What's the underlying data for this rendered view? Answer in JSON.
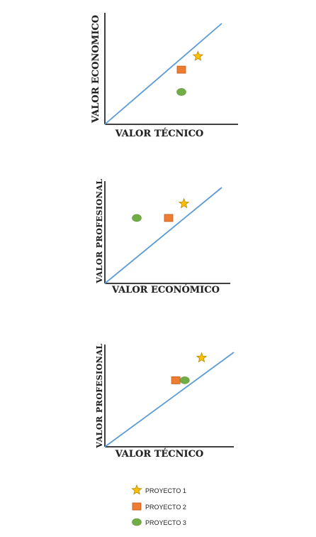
{
  "colors": {
    "axis": "#000000",
    "diagonal": "#5b9bd5",
    "proyecto1": "#ffc000",
    "proyecto1_stroke": "#b48a00",
    "proyecto2": "#ed7d31",
    "proyecto2_stroke": "#c05a1a",
    "proyecto3": "#70ad47",
    "proyecto3_stroke": "#5a9338"
  },
  "charts": [
    {
      "id": "tecnico-vs-economico",
      "x_label": "VALOR TÉCNICO",
      "y_label": "VALOR ECONOMICO",
      "markers": [
        {
          "project": "PROYECTO 1",
          "shape": "star-icon",
          "x": 0.73,
          "y": 0.61
        },
        {
          "project": "PROYECTO 2",
          "shape": "square-icon",
          "x": 0.6,
          "y": 0.49
        },
        {
          "project": "PROYECTO 3",
          "shape": "ellipse-icon",
          "x": 0.6,
          "y": 0.29
        }
      ]
    },
    {
      "id": "economico-vs-profesional",
      "x_label": "VALOR ECONÓMICO",
      "y_label": "VALOR PROFESIONAL",
      "markers": [
        {
          "project": "PROYECTO 1",
          "shape": "star-icon",
          "x": 0.62,
          "y": 0.78
        },
        {
          "project": "PROYECTO 2",
          "shape": "square-icon",
          "x": 0.5,
          "y": 0.64
        },
        {
          "project": "PROYECTO 3",
          "shape": "ellipse-icon",
          "x": 0.25,
          "y": 0.64
        }
      ]
    },
    {
      "id": "tecnico-vs-profesional",
      "x_label": "VALOR TÉCNICO",
      "y_label": "VALOR PROFESIONAL",
      "markers": [
        {
          "project": "PROYECTO 1",
          "shape": "star-icon",
          "x": 0.75,
          "y": 0.87
        },
        {
          "project": "PROYECTO 2",
          "shape": "square-icon",
          "x": 0.55,
          "y": 0.65
        },
        {
          "project": "PROYECTO 3",
          "shape": "ellipse-icon",
          "x": 0.62,
          "y": 0.65
        }
      ]
    }
  ],
  "legend": [
    {
      "label": "PROYECTO 1",
      "shape": "star-icon"
    },
    {
      "label": "PROYECTO 2",
      "shape": "square-icon"
    },
    {
      "label": "PROYECTO 3",
      "shape": "ellipse-icon"
    }
  ]
}
